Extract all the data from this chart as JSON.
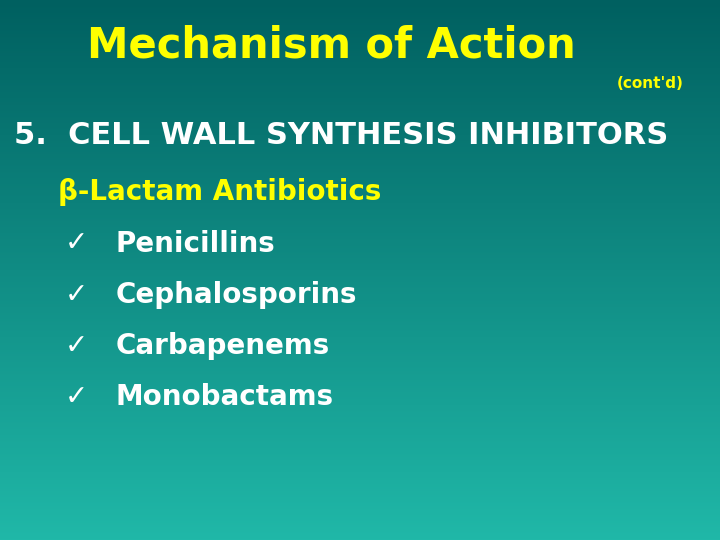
{
  "title": "Mechanism of Action",
  "contd": "(cont'd)",
  "title_color": "#FFFF00",
  "contd_color": "#FFFF00",
  "bg_color_top": "#006060",
  "bg_color_bottom": "#20b8a8",
  "line1": "5.  CELL WALL SYNTHESIS INHIBITORS",
  "line1_color": "#FFFFFF",
  "line2": "β-Lactam Antibiotics",
  "line2_color": "#FFFF00",
  "bullet_items": [
    "Penicillins",
    "Cephalosporins",
    "Carbapenems",
    "Monobactams"
  ],
  "bullet_color": "#FFFFFF",
  "bullet_mark": "✓",
  "title_fontsize": 30,
  "contd_fontsize": 11,
  "line1_fontsize": 22,
  "line2_fontsize": 20,
  "bullet_fontsize": 20,
  "figwidth": 7.2,
  "figheight": 5.4,
  "dpi": 100
}
